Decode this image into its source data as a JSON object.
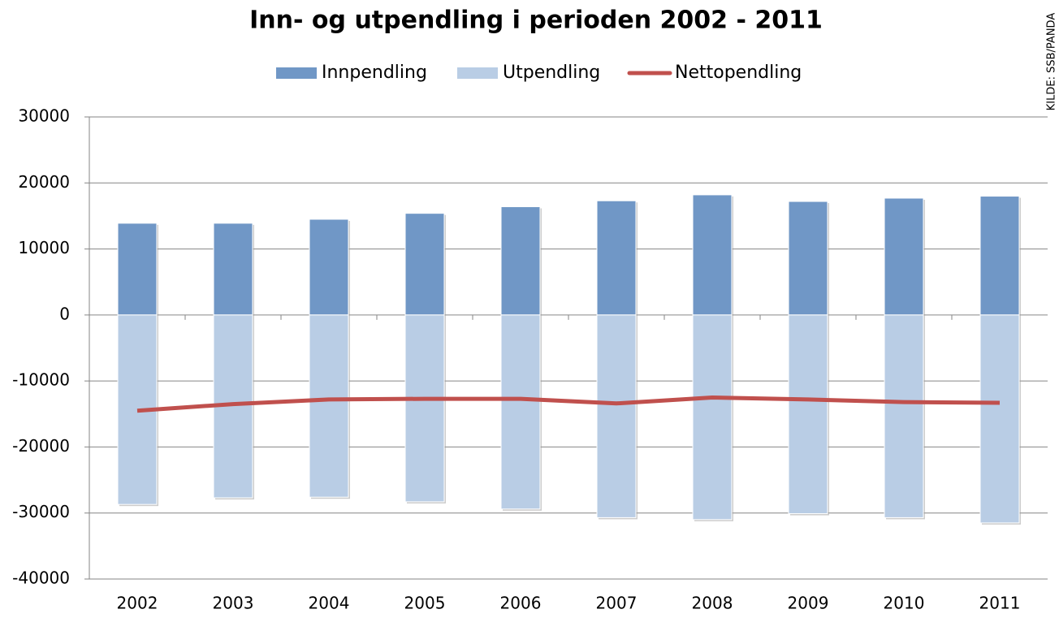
{
  "chart_data": {
    "type": "bar",
    "title": "Inn- og utpendling i perioden 2002 - 2011",
    "source": "KILDE: SSB/PANDA",
    "categories": [
      "2002",
      "2003",
      "2004",
      "2005",
      "2006",
      "2007",
      "2008",
      "2009",
      "2010",
      "2011"
    ],
    "series": [
      {
        "name": "Innpendling",
        "type": "bar",
        "color": "#7097c6",
        "values": [
          13900,
          13900,
          14500,
          15400,
          16400,
          17300,
          18200,
          17200,
          17700,
          18000
        ]
      },
      {
        "name": "Utpendling",
        "type": "bar",
        "color": "#b9cde5",
        "values": [
          -28700,
          -27700,
          -27600,
          -28300,
          -29400,
          -30700,
          -31000,
          -30100,
          -30700,
          -31500
        ]
      },
      {
        "name": "Nettopendling",
        "type": "line",
        "color": "#c0504d",
        "values": [
          -14500,
          -13500,
          -12800,
          -12700,
          -12700,
          -13400,
          -12500,
          -12800,
          -13200,
          -13300
        ]
      }
    ],
    "ylim": [
      -40000,
      30000
    ],
    "yticks": [
      -40000,
      -30000,
      -20000,
      -10000,
      0,
      10000,
      20000,
      30000
    ],
    "grid": true,
    "legend": "top"
  }
}
